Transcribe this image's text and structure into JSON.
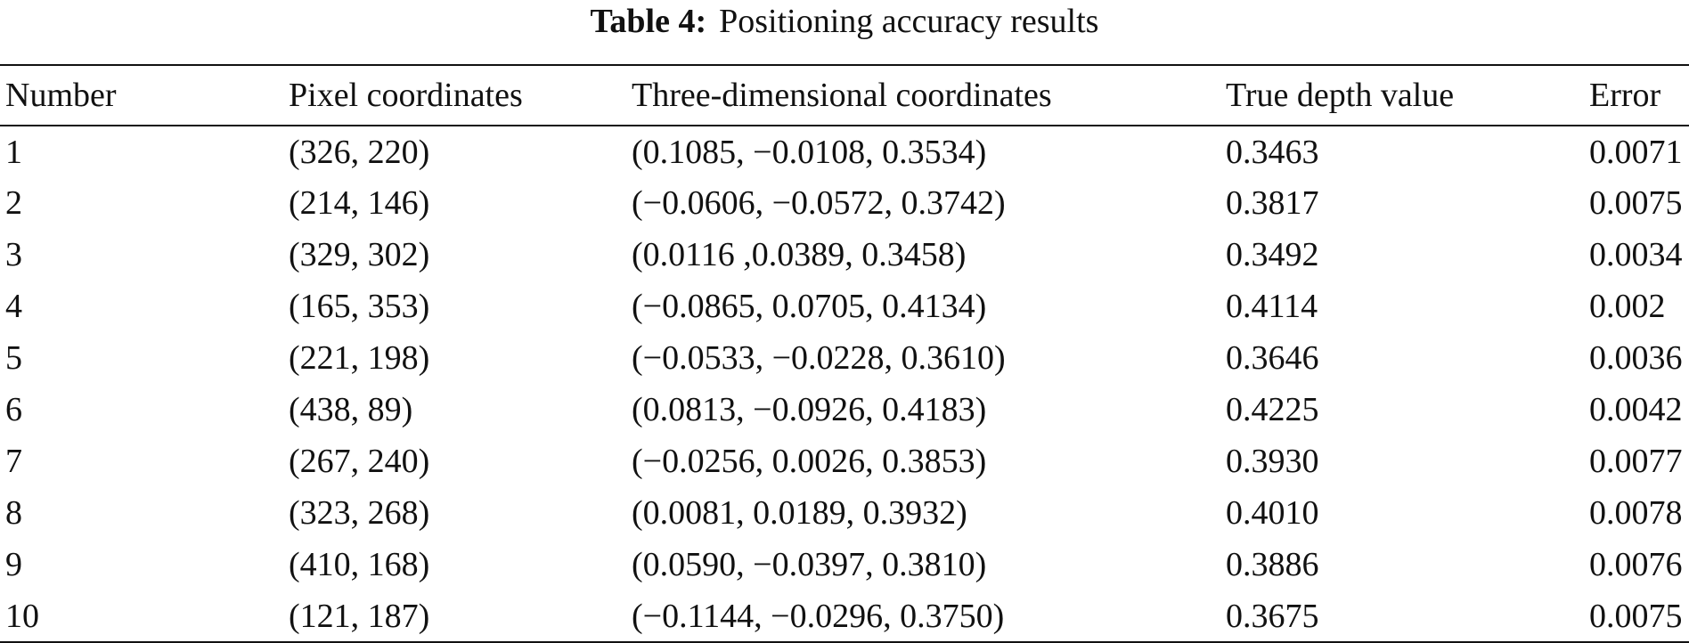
{
  "caption": {
    "label": "Table 4:",
    "title": "Positioning accuracy results"
  },
  "table": {
    "headers": [
      "Number",
      "Pixel coordinates",
      "Three-dimensional coordinates",
      "True depth value",
      "Error"
    ],
    "rows": [
      [
        "1",
        "(326, 220)",
        "(0.1085, −0.0108, 0.3534)",
        "0.3463",
        "0.0071"
      ],
      [
        "2",
        "(214, 146)",
        "(−0.0606, −0.0572, 0.3742)",
        "0.3817",
        "0.0075"
      ],
      [
        "3",
        "(329, 302)",
        "(0.0116 ,0.0389, 0.3458)",
        "0.3492",
        "0.0034"
      ],
      [
        "4",
        "(165, 353)",
        "(−0.0865, 0.0705, 0.4134)",
        "0.4114",
        "0.002"
      ],
      [
        "5",
        "(221, 198)",
        "(−0.0533, −0.0228, 0.3610)",
        "0.3646",
        "0.0036"
      ],
      [
        "6",
        "(438, 89)",
        "(0.0813, −0.0926, 0.4183)",
        "0.4225",
        "0.0042"
      ],
      [
        "7",
        "(267, 240)",
        "(−0.0256, 0.0026, 0.3853)",
        "0.3930",
        "0.0077"
      ],
      [
        "8",
        "(323, 268)",
        "(0.0081, 0.0189, 0.3932)",
        "0.4010",
        "0.0078"
      ],
      [
        "9",
        "(410, 168)",
        "(0.0590, −0.0397, 0.3810)",
        "0.3886",
        "0.0076"
      ],
      [
        "10",
        "(121, 187)",
        "(−0.1144, −0.0296, 0.3750)",
        "0.3675",
        "0.0075"
      ]
    ]
  }
}
